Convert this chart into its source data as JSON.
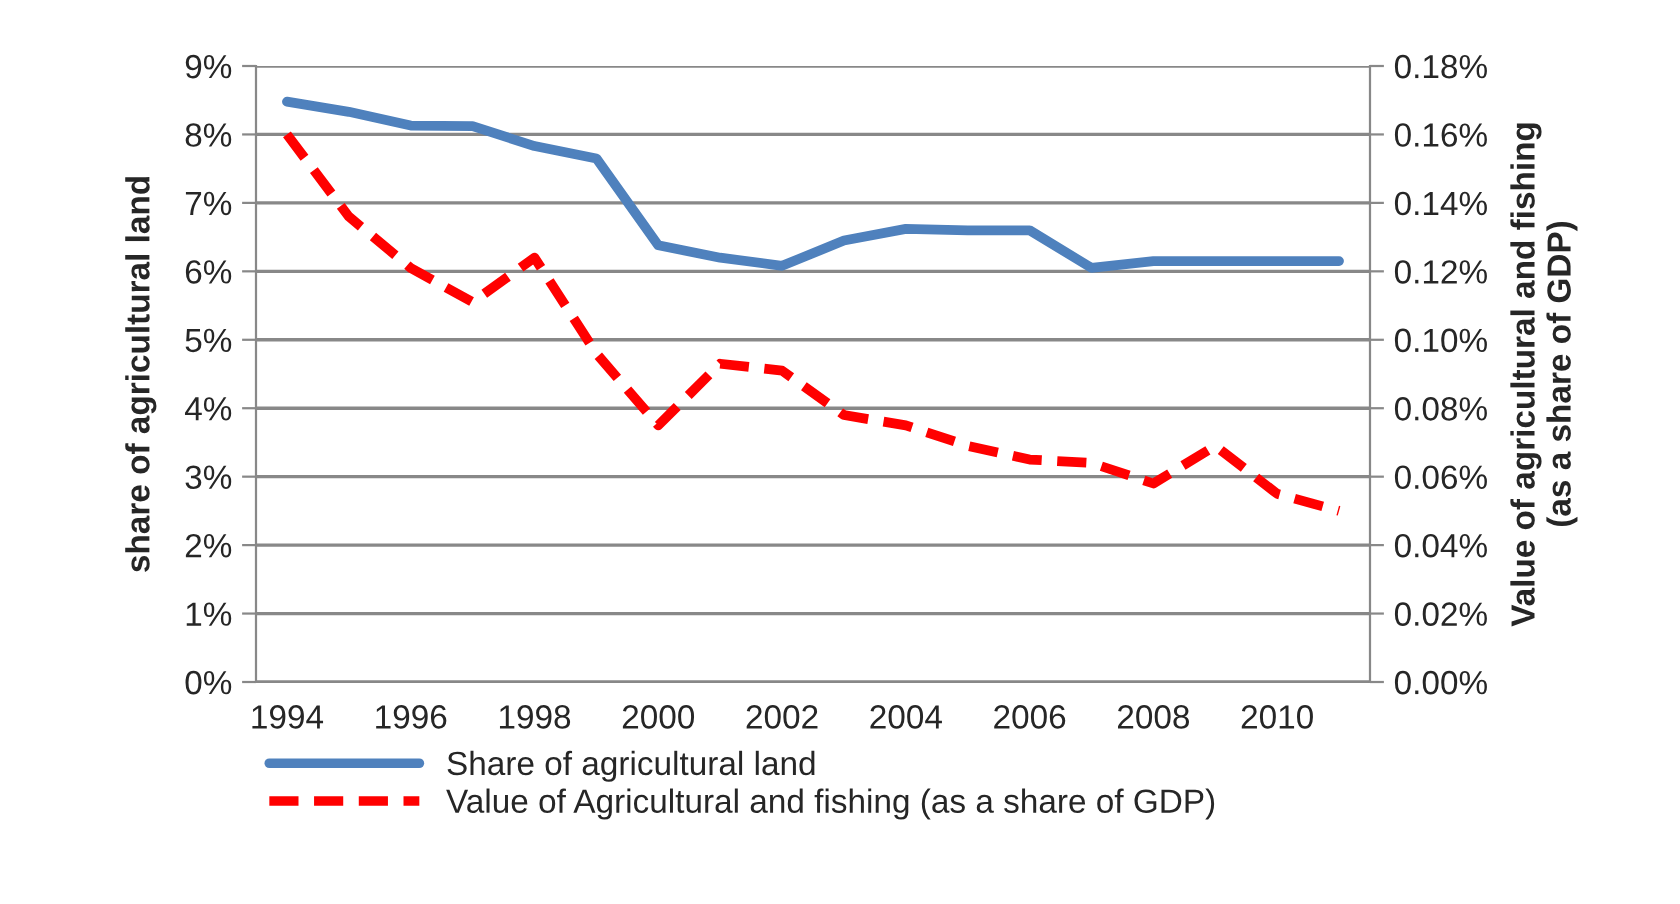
{
  "chart_data": {
    "type": "line",
    "ylabel": "share of agricultural land",
    "y2label": "Value of agricultural and fishing\n(as a share of GDP)",
    "categories": [
      "1994",
      null,
      "1996",
      null,
      "1998",
      null,
      "2000",
      null,
      "2002",
      null,
      "2004",
      null,
      "2006",
      null,
      "2008",
      null,
      "2010",
      null
    ],
    "series": [
      {
        "name": "Share of agricultural land",
        "color": "#4f81bd",
        "line_style": "solid",
        "values": [
          8.48,
          8.33,
          8.13,
          8.12,
          7.83,
          7.65,
          6.38,
          6.2,
          6.08,
          6.45,
          6.62,
          6.6,
          6.6,
          6.05,
          6.15,
          6.15,
          6.15,
          6.15
        ]
      },
      {
        "name": "Value of Agricultural and fishing (as a share of GDP)",
        "color": "#ff0000",
        "line_style": "dashed",
        "axis": "y2",
        "values": [
          0.16,
          0.136,
          0.121,
          0.111,
          0.124,
          0.096,
          0.075,
          0.093,
          0.091,
          0.078,
          0.075,
          0.069,
          0.065,
          0.064,
          0.058,
          0.069,
          0.055,
          0.05
        ]
      }
    ],
    "ylim": [
      0,
      9
    ],
    "yticks": [
      {
        "value": 0,
        "label": "0%"
      },
      {
        "value": 1,
        "label": "1%"
      },
      {
        "value": 2,
        "label": "2%"
      },
      {
        "value": 3,
        "label": "3%"
      },
      {
        "value": 4,
        "label": "4%"
      },
      {
        "value": 5,
        "label": "5%"
      },
      {
        "value": 6,
        "label": "6%"
      },
      {
        "value": 7,
        "label": "7%"
      },
      {
        "value": 8,
        "label": "8%"
      },
      {
        "value": 9,
        "label": "9%"
      }
    ],
    "y2lim": [
      0,
      0.18
    ],
    "y2ticks": [
      {
        "value": 0,
        "label": "0.00%"
      },
      {
        "value": 0.02,
        "label": "0.02%"
      },
      {
        "value": 0.04,
        "label": "0.04%"
      },
      {
        "value": 0.06,
        "label": "0.06%"
      },
      {
        "value": 0.08,
        "label": "0.08%"
      },
      {
        "value": 0.1,
        "label": "0.10%"
      },
      {
        "value": 0.12,
        "label": "0.12%"
      },
      {
        "value": 0.14,
        "label": "0.14%"
      },
      {
        "value": 0.16,
        "label": "0.16%"
      },
      {
        "value": 0.18,
        "label": "0.18%"
      }
    ],
    "grid": "y",
    "legend": "bottom",
    "marker": "none"
  }
}
